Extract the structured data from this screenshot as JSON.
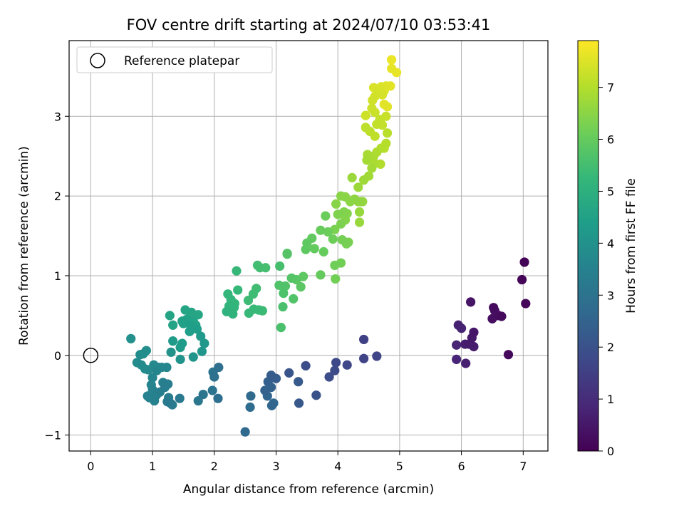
{
  "chart_data": {
    "type": "scatter",
    "title": "FOV centre drift starting at 2024/07/10 03:53:41",
    "xlabel": "Angular distance from reference (arcmin)",
    "ylabel": "Rotation from reference (arcmin)",
    "xlim": [
      -0.35,
      7.4
    ],
    "ylim": [
      -1.2,
      3.95
    ],
    "xticks": [
      0,
      1,
      2,
      3,
      4,
      5,
      6,
      7
    ],
    "yticks": [
      -1,
      0,
      1,
      2,
      3
    ],
    "ytick_labels": [
      "−1",
      "0",
      "1",
      "2",
      "3"
    ],
    "grid": true,
    "legend": {
      "position": "top-left",
      "entries": [
        "Reference platepar"
      ]
    },
    "reference_point": {
      "x": 0,
      "y": 0,
      "marker": "open-circle"
    },
    "colorbar": {
      "label": "Hours from first FF file",
      "colormap": "viridis",
      "range": [
        0,
        7.9
      ],
      "ticks": [
        0,
        1,
        2,
        3,
        4,
        5,
        6,
        7
      ]
    },
    "colors": {
      "viridis": [
        "#440154",
        "#482878",
        "#3e4989",
        "#31688e",
        "#26828e",
        "#1f9e89",
        "#35b779",
        "#6ece58",
        "#b5de2b",
        "#fde725"
      ]
    },
    "points": [
      {
        "x": 7.02,
        "y": 1.17,
        "h": 0.05
      },
      {
        "x": 6.98,
        "y": 0.95,
        "h": 0.1
      },
      {
        "x": 7.04,
        "y": 0.65,
        "h": 0.12
      },
      {
        "x": 6.76,
        "y": 0.01,
        "h": 0.15
      },
      {
        "x": 6.65,
        "y": 0.49,
        "h": 0.2
      },
      {
        "x": 6.52,
        "y": 0.6,
        "h": 0.25
      },
      {
        "x": 6.6,
        "y": 0.5,
        "h": 0.28
      },
      {
        "x": 6.5,
        "y": 0.46,
        "h": 0.3
      },
      {
        "x": 6.54,
        "y": 0.56,
        "h": 0.33
      },
      {
        "x": 6.15,
        "y": 0.67,
        "h": 0.45
      },
      {
        "x": 6.2,
        "y": 0.29,
        "h": 0.5
      },
      {
        "x": 6.17,
        "y": 0.22,
        "h": 0.55
      },
      {
        "x": 6.13,
        "y": 0.14,
        "h": 0.6
      },
      {
        "x": 6.2,
        "y": 0.11,
        "h": 0.62
      },
      {
        "x": 6.06,
        "y": 0.14,
        "h": 0.65
      },
      {
        "x": 6.07,
        "y": -0.1,
        "h": 0.7
      },
      {
        "x": 5.95,
        "y": 0.38,
        "h": 0.75
      },
      {
        "x": 6.0,
        "y": 0.34,
        "h": 0.78
      },
      {
        "x": 5.92,
        "y": 0.13,
        "h": 0.8
      },
      {
        "x": 5.92,
        "y": -0.05,
        "h": 0.82
      },
      {
        "x": 4.42,
        "y": 0.2,
        "h": 1.55
      },
      {
        "x": 4.42,
        "y": -0.04,
        "h": 1.6
      },
      {
        "x": 4.63,
        "y": -0.01,
        "h": 1.65
      },
      {
        "x": 4.15,
        "y": -0.12,
        "h": 1.7
      },
      {
        "x": 3.97,
        "y": -0.09,
        "h": 1.75
      },
      {
        "x": 3.95,
        "y": -0.19,
        "h": 1.8
      },
      {
        "x": 3.86,
        "y": -0.27,
        "h": 1.85
      },
      {
        "x": 3.48,
        "y": -0.13,
        "h": 1.9
      },
      {
        "x": 3.65,
        "y": -0.5,
        "h": 2.0
      },
      {
        "x": 3.21,
        "y": -0.22,
        "h": 2.1
      },
      {
        "x": 3.37,
        "y": -0.6,
        "h": 2.15
      },
      {
        "x": 3.36,
        "y": -0.33,
        "h": 2.2
      },
      {
        "x": 2.92,
        "y": -0.25,
        "h": 2.3
      },
      {
        "x": 3.0,
        "y": -0.29,
        "h": 2.35
      },
      {
        "x": 2.87,
        "y": -0.33,
        "h": 2.4
      },
      {
        "x": 2.82,
        "y": -0.44,
        "h": 2.45
      },
      {
        "x": 2.92,
        "y": -0.4,
        "h": 2.5
      },
      {
        "x": 2.86,
        "y": -0.51,
        "h": 2.55
      },
      {
        "x": 2.93,
        "y": -0.63,
        "h": 2.6
      },
      {
        "x": 2.96,
        "y": -0.6,
        "h": 2.62
      },
      {
        "x": 2.5,
        "y": -0.96,
        "h": 2.7
      },
      {
        "x": 2.59,
        "y": -0.51,
        "h": 2.75
      },
      {
        "x": 2.58,
        "y": -0.65,
        "h": 2.78
      },
      {
        "x": 2.06,
        "y": -0.54,
        "h": 2.85
      },
      {
        "x": 2.07,
        "y": -0.15,
        "h": 2.9
      },
      {
        "x": 2.0,
        "y": -0.27,
        "h": 2.95
      },
      {
        "x": 1.98,
        "y": -0.21,
        "h": 3.0
      },
      {
        "x": 1.97,
        "y": -0.44,
        "h": 3.05
      },
      {
        "x": 1.82,
        "y": -0.49,
        "h": 3.1
      },
      {
        "x": 1.74,
        "y": -0.57,
        "h": 3.15
      },
      {
        "x": 1.44,
        "y": -0.54,
        "h": 3.2
      },
      {
        "x": 1.29,
        "y": -0.6,
        "h": 3.25
      },
      {
        "x": 1.32,
        "y": -0.62,
        "h": 3.28
      },
      {
        "x": 1.24,
        "y": -0.58,
        "h": 3.3
      },
      {
        "x": 1.26,
        "y": -0.53,
        "h": 3.32
      },
      {
        "x": 1.25,
        "y": -0.36,
        "h": 3.35
      },
      {
        "x": 1.2,
        "y": -0.4,
        "h": 3.38
      },
      {
        "x": 1.17,
        "y": -0.34,
        "h": 3.4
      },
      {
        "x": 1.12,
        "y": -0.46,
        "h": 3.42
      },
      {
        "x": 1.06,
        "y": -0.5,
        "h": 3.45
      },
      {
        "x": 1.03,
        "y": -0.57,
        "h": 3.48
      },
      {
        "x": 0.92,
        "y": -0.51,
        "h": 3.5
      },
      {
        "x": 0.95,
        "y": -0.53,
        "h": 3.52
      },
      {
        "x": 1.0,
        "y": -0.43,
        "h": 3.55
      },
      {
        "x": 0.98,
        "y": -0.37,
        "h": 3.58
      },
      {
        "x": 1.0,
        "y": -0.28,
        "h": 3.6
      },
      {
        "x": 1.07,
        "y": -0.19,
        "h": 3.62
      },
      {
        "x": 1.15,
        "y": -0.15,
        "h": 3.65
      },
      {
        "x": 1.23,
        "y": -0.15,
        "h": 3.68
      },
      {
        "x": 1.1,
        "y": -0.15,
        "h": 3.7
      },
      {
        "x": 1.02,
        "y": -0.12,
        "h": 3.72
      },
      {
        "x": 0.93,
        "y": -0.18,
        "h": 3.75
      },
      {
        "x": 0.88,
        "y": -0.17,
        "h": 3.78
      },
      {
        "x": 0.82,
        "y": -0.12,
        "h": 3.8
      },
      {
        "x": 0.75,
        "y": -0.09,
        "h": 3.82
      },
      {
        "x": 0.8,
        "y": 0.01,
        "h": 3.85
      },
      {
        "x": 0.85,
        "y": 0.02,
        "h": 3.87
      },
      {
        "x": 0.9,
        "y": 0.06,
        "h": 3.9
      },
      {
        "x": 0.65,
        "y": 0.21,
        "h": 3.95
      },
      {
        "x": 1.3,
        "y": 0.04,
        "h": 4.0
      },
      {
        "x": 1.45,
        "y": -0.05,
        "h": 4.05
      },
      {
        "x": 1.66,
        "y": -0.02,
        "h": 4.1
      },
      {
        "x": 1.8,
        "y": 0.05,
        "h": 4.15
      },
      {
        "x": 1.84,
        "y": 0.15,
        "h": 4.2
      },
      {
        "x": 1.78,
        "y": 0.24,
        "h": 4.25
      },
      {
        "x": 1.33,
        "y": 0.18,
        "h": 4.3
      },
      {
        "x": 1.45,
        "y": 0.1,
        "h": 4.33
      },
      {
        "x": 1.48,
        "y": 0.15,
        "h": 4.35
      },
      {
        "x": 1.6,
        "y": 0.3,
        "h": 4.38
      },
      {
        "x": 1.72,
        "y": 0.33,
        "h": 4.4
      },
      {
        "x": 1.62,
        "y": 0.37,
        "h": 4.42
      },
      {
        "x": 1.5,
        "y": 0.4,
        "h": 4.45
      },
      {
        "x": 1.55,
        "y": 0.45,
        "h": 4.48
      },
      {
        "x": 1.48,
        "y": 0.43,
        "h": 4.5
      },
      {
        "x": 1.66,
        "y": 0.43,
        "h": 4.52
      },
      {
        "x": 1.7,
        "y": 0.38,
        "h": 4.55
      },
      {
        "x": 1.33,
        "y": 0.38,
        "h": 4.58
      },
      {
        "x": 1.28,
        "y": 0.5,
        "h": 4.6
      },
      {
        "x": 1.53,
        "y": 0.57,
        "h": 4.62
      },
      {
        "x": 1.63,
        "y": 0.54,
        "h": 4.65
      },
      {
        "x": 1.74,
        "y": 0.51,
        "h": 4.68
      },
      {
        "x": 1.58,
        "y": 0.46,
        "h": 4.7
      },
      {
        "x": 2.2,
        "y": 0.55,
        "h": 5.05
      },
      {
        "x": 2.3,
        "y": 0.52,
        "h": 5.1
      },
      {
        "x": 2.24,
        "y": 0.62,
        "h": 5.12
      },
      {
        "x": 2.32,
        "y": 0.6,
        "h": 5.15
      },
      {
        "x": 2.27,
        "y": 0.7,
        "h": 5.18
      },
      {
        "x": 2.33,
        "y": 0.65,
        "h": 5.2
      },
      {
        "x": 2.22,
        "y": 0.77,
        "h": 5.22
      },
      {
        "x": 2.38,
        "y": 0.82,
        "h": 5.25
      },
      {
        "x": 2.36,
        "y": 1.06,
        "h": 5.28
      },
      {
        "x": 2.56,
        "y": 0.53,
        "h": 5.3
      },
      {
        "x": 2.64,
        "y": 0.58,
        "h": 5.32
      },
      {
        "x": 2.72,
        "y": 0.57,
        "h": 5.35
      },
      {
        "x": 2.78,
        "y": 0.56,
        "h": 5.38
      },
      {
        "x": 2.55,
        "y": 0.69,
        "h": 5.4
      },
      {
        "x": 2.63,
        "y": 0.77,
        "h": 5.42
      },
      {
        "x": 2.68,
        "y": 0.84,
        "h": 5.45
      },
      {
        "x": 2.7,
        "y": 1.13,
        "h": 5.48
      },
      {
        "x": 2.74,
        "y": 1.1,
        "h": 5.5
      },
      {
        "x": 2.83,
        "y": 1.1,
        "h": 5.52
      },
      {
        "x": 3.06,
        "y": 1.12,
        "h": 5.55
      },
      {
        "x": 3.08,
        "y": 0.35,
        "h": 5.6
      },
      {
        "x": 3.11,
        "y": 0.61,
        "h": 5.62
      },
      {
        "x": 3.12,
        "y": 0.78,
        "h": 5.65
      },
      {
        "x": 3.05,
        "y": 0.88,
        "h": 5.68
      },
      {
        "x": 3.15,
        "y": 0.87,
        "h": 5.7
      },
      {
        "x": 3.28,
        "y": 0.71,
        "h": 5.72
      },
      {
        "x": 3.25,
        "y": 0.97,
        "h": 5.75
      },
      {
        "x": 3.18,
        "y": 1.27,
        "h": 5.78
      },
      {
        "x": 3.18,
        "y": 1.28,
        "h": 5.8
      },
      {
        "x": 3.33,
        "y": 0.95,
        "h": 5.82
      },
      {
        "x": 3.4,
        "y": 0.86,
        "h": 5.85
      },
      {
        "x": 3.44,
        "y": 0.99,
        "h": 5.88
      },
      {
        "x": 3.48,
        "y": 1.33,
        "h": 5.9
      },
      {
        "x": 3.5,
        "y": 1.41,
        "h": 5.92
      },
      {
        "x": 3.58,
        "y": 1.47,
        "h": 5.95
      },
      {
        "x": 3.62,
        "y": 1.34,
        "h": 5.98
      },
      {
        "x": 3.72,
        "y": 1.01,
        "h": 6.0
      },
      {
        "x": 3.77,
        "y": 1.3,
        "h": 6.02
      },
      {
        "x": 3.72,
        "y": 1.57,
        "h": 6.05
      },
      {
        "x": 3.8,
        "y": 1.75,
        "h": 6.08
      },
      {
        "x": 3.84,
        "y": 1.55,
        "h": 6.1
      },
      {
        "x": 3.92,
        "y": 1.46,
        "h": 6.12
      },
      {
        "x": 3.95,
        "y": 1.13,
        "h": 6.15
      },
      {
        "x": 3.96,
        "y": 0.96,
        "h": 6.18
      },
      {
        "x": 4.05,
        "y": 1.16,
        "h": 6.2
      },
      {
        "x": 4.07,
        "y": 1.45,
        "h": 6.22
      },
      {
        "x": 4.14,
        "y": 1.4,
        "h": 6.25
      },
      {
        "x": 4.17,
        "y": 1.42,
        "h": 6.28
      },
      {
        "x": 3.95,
        "y": 1.58,
        "h": 6.3
      },
      {
        "x": 4.05,
        "y": 1.65,
        "h": 6.32
      },
      {
        "x": 4.0,
        "y": 1.77,
        "h": 6.35
      },
      {
        "x": 4.1,
        "y": 1.8,
        "h": 6.38
      },
      {
        "x": 4.15,
        "y": 1.78,
        "h": 6.4
      },
      {
        "x": 4.12,
        "y": 1.7,
        "h": 6.42
      },
      {
        "x": 3.97,
        "y": 1.9,
        "h": 6.45
      },
      {
        "x": 4.05,
        "y": 2.0,
        "h": 6.48
      },
      {
        "x": 4.12,
        "y": 1.99,
        "h": 6.5
      },
      {
        "x": 4.2,
        "y": 1.93,
        "h": 6.52
      },
      {
        "x": 4.27,
        "y": 1.96,
        "h": 6.55
      },
      {
        "x": 4.33,
        "y": 1.93,
        "h": 6.58
      },
      {
        "x": 4.38,
        "y": 1.93,
        "h": 6.6
      },
      {
        "x": 4.4,
        "y": 1.93,
        "h": 6.62
      },
      {
        "x": 4.35,
        "y": 1.8,
        "h": 6.65
      },
      {
        "x": 4.35,
        "y": 1.67,
        "h": 6.68
      },
      {
        "x": 4.23,
        "y": 2.23,
        "h": 6.7
      },
      {
        "x": 4.33,
        "y": 2.11,
        "h": 6.72
      },
      {
        "x": 4.42,
        "y": 2.2,
        "h": 6.75
      },
      {
        "x": 4.5,
        "y": 2.25,
        "h": 6.78
      },
      {
        "x": 4.55,
        "y": 2.35,
        "h": 6.8
      },
      {
        "x": 4.47,
        "y": 2.45,
        "h": 6.82
      },
      {
        "x": 4.48,
        "y": 2.52,
        "h": 6.85
      },
      {
        "x": 4.52,
        "y": 2.49,
        "h": 6.88
      },
      {
        "x": 4.6,
        "y": 2.41,
        "h": 6.9
      },
      {
        "x": 4.58,
        "y": 2.5,
        "h": 6.92
      },
      {
        "x": 4.63,
        "y": 2.55,
        "h": 6.95
      },
      {
        "x": 4.69,
        "y": 2.4,
        "h": 6.98
      },
      {
        "x": 4.7,
        "y": 2.6,
        "h": 7.0
      },
      {
        "x": 4.78,
        "y": 2.66,
        "h": 7.02
      },
      {
        "x": 4.75,
        "y": 2.6,
        "h": 7.05
      },
      {
        "x": 4.8,
        "y": 2.79,
        "h": 7.08
      },
      {
        "x": 4.45,
        "y": 2.86,
        "h": 7.1
      },
      {
        "x": 4.52,
        "y": 2.81,
        "h": 7.12
      },
      {
        "x": 4.6,
        "y": 2.75,
        "h": 7.15
      },
      {
        "x": 4.63,
        "y": 2.9,
        "h": 7.18
      },
      {
        "x": 4.68,
        "y": 2.96,
        "h": 7.2
      },
      {
        "x": 4.72,
        "y": 2.89,
        "h": 7.22
      },
      {
        "x": 4.78,
        "y": 3.0,
        "h": 7.25
      },
      {
        "x": 4.6,
        "y": 3.05,
        "h": 7.28
      },
      {
        "x": 4.55,
        "y": 3.1,
        "h": 7.3
      },
      {
        "x": 4.45,
        "y": 3.01,
        "h": 7.32
      },
      {
        "x": 4.56,
        "y": 3.2,
        "h": 7.35
      },
      {
        "x": 4.6,
        "y": 3.25,
        "h": 7.38
      },
      {
        "x": 4.65,
        "y": 3.3,
        "h": 7.4
      },
      {
        "x": 4.72,
        "y": 3.27,
        "h": 7.42
      },
      {
        "x": 4.58,
        "y": 3.36,
        "h": 7.45
      },
      {
        "x": 4.7,
        "y": 3.37,
        "h": 7.48
      },
      {
        "x": 4.75,
        "y": 3.32,
        "h": 7.5
      },
      {
        "x": 4.78,
        "y": 3.38,
        "h": 7.52
      },
      {
        "x": 4.8,
        "y": 3.12,
        "h": 7.55
      },
      {
        "x": 4.75,
        "y": 3.15,
        "h": 7.58
      },
      {
        "x": 4.85,
        "y": 3.38,
        "h": 7.6
      },
      {
        "x": 4.87,
        "y": 3.6,
        "h": 7.62
      },
      {
        "x": 4.95,
        "y": 3.55,
        "h": 7.65
      },
      {
        "x": 4.87,
        "y": 3.71,
        "h": 7.68
      }
    ]
  }
}
